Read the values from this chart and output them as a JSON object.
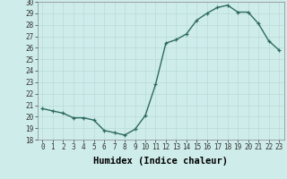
{
  "x": [
    0,
    1,
    2,
    3,
    4,
    5,
    6,
    7,
    8,
    9,
    10,
    11,
    12,
    13,
    14,
    15,
    16,
    17,
    18,
    19,
    20,
    21,
    22,
    23
  ],
  "y": [
    20.7,
    20.5,
    20.3,
    19.9,
    19.9,
    19.7,
    18.8,
    18.6,
    18.4,
    18.9,
    20.1,
    22.8,
    26.4,
    26.7,
    27.2,
    28.4,
    29.0,
    29.5,
    29.7,
    29.1,
    29.1,
    28.1,
    26.6,
    25.8
  ],
  "line_color": "#2e6b5e",
  "marker": "+",
  "bg_color": "#ceecea",
  "grid_color": "#b8dbd8",
  "xlabel": "Humidex (Indice chaleur)",
  "ylim": [
    18,
    30
  ],
  "yticks": [
    18,
    19,
    20,
    21,
    22,
    23,
    24,
    25,
    26,
    27,
    28,
    29,
    30
  ],
  "xticks": [
    0,
    1,
    2,
    3,
    4,
    5,
    6,
    7,
    8,
    9,
    10,
    11,
    12,
    13,
    14,
    15,
    16,
    17,
    18,
    19,
    20,
    21,
    22,
    23
  ],
  "tick_fontsize": 5.5,
  "xlabel_fontsize": 7.5,
  "linewidth": 1.0,
  "markersize": 3.5,
  "figsize": [
    3.2,
    2.0
  ],
  "dpi": 100
}
